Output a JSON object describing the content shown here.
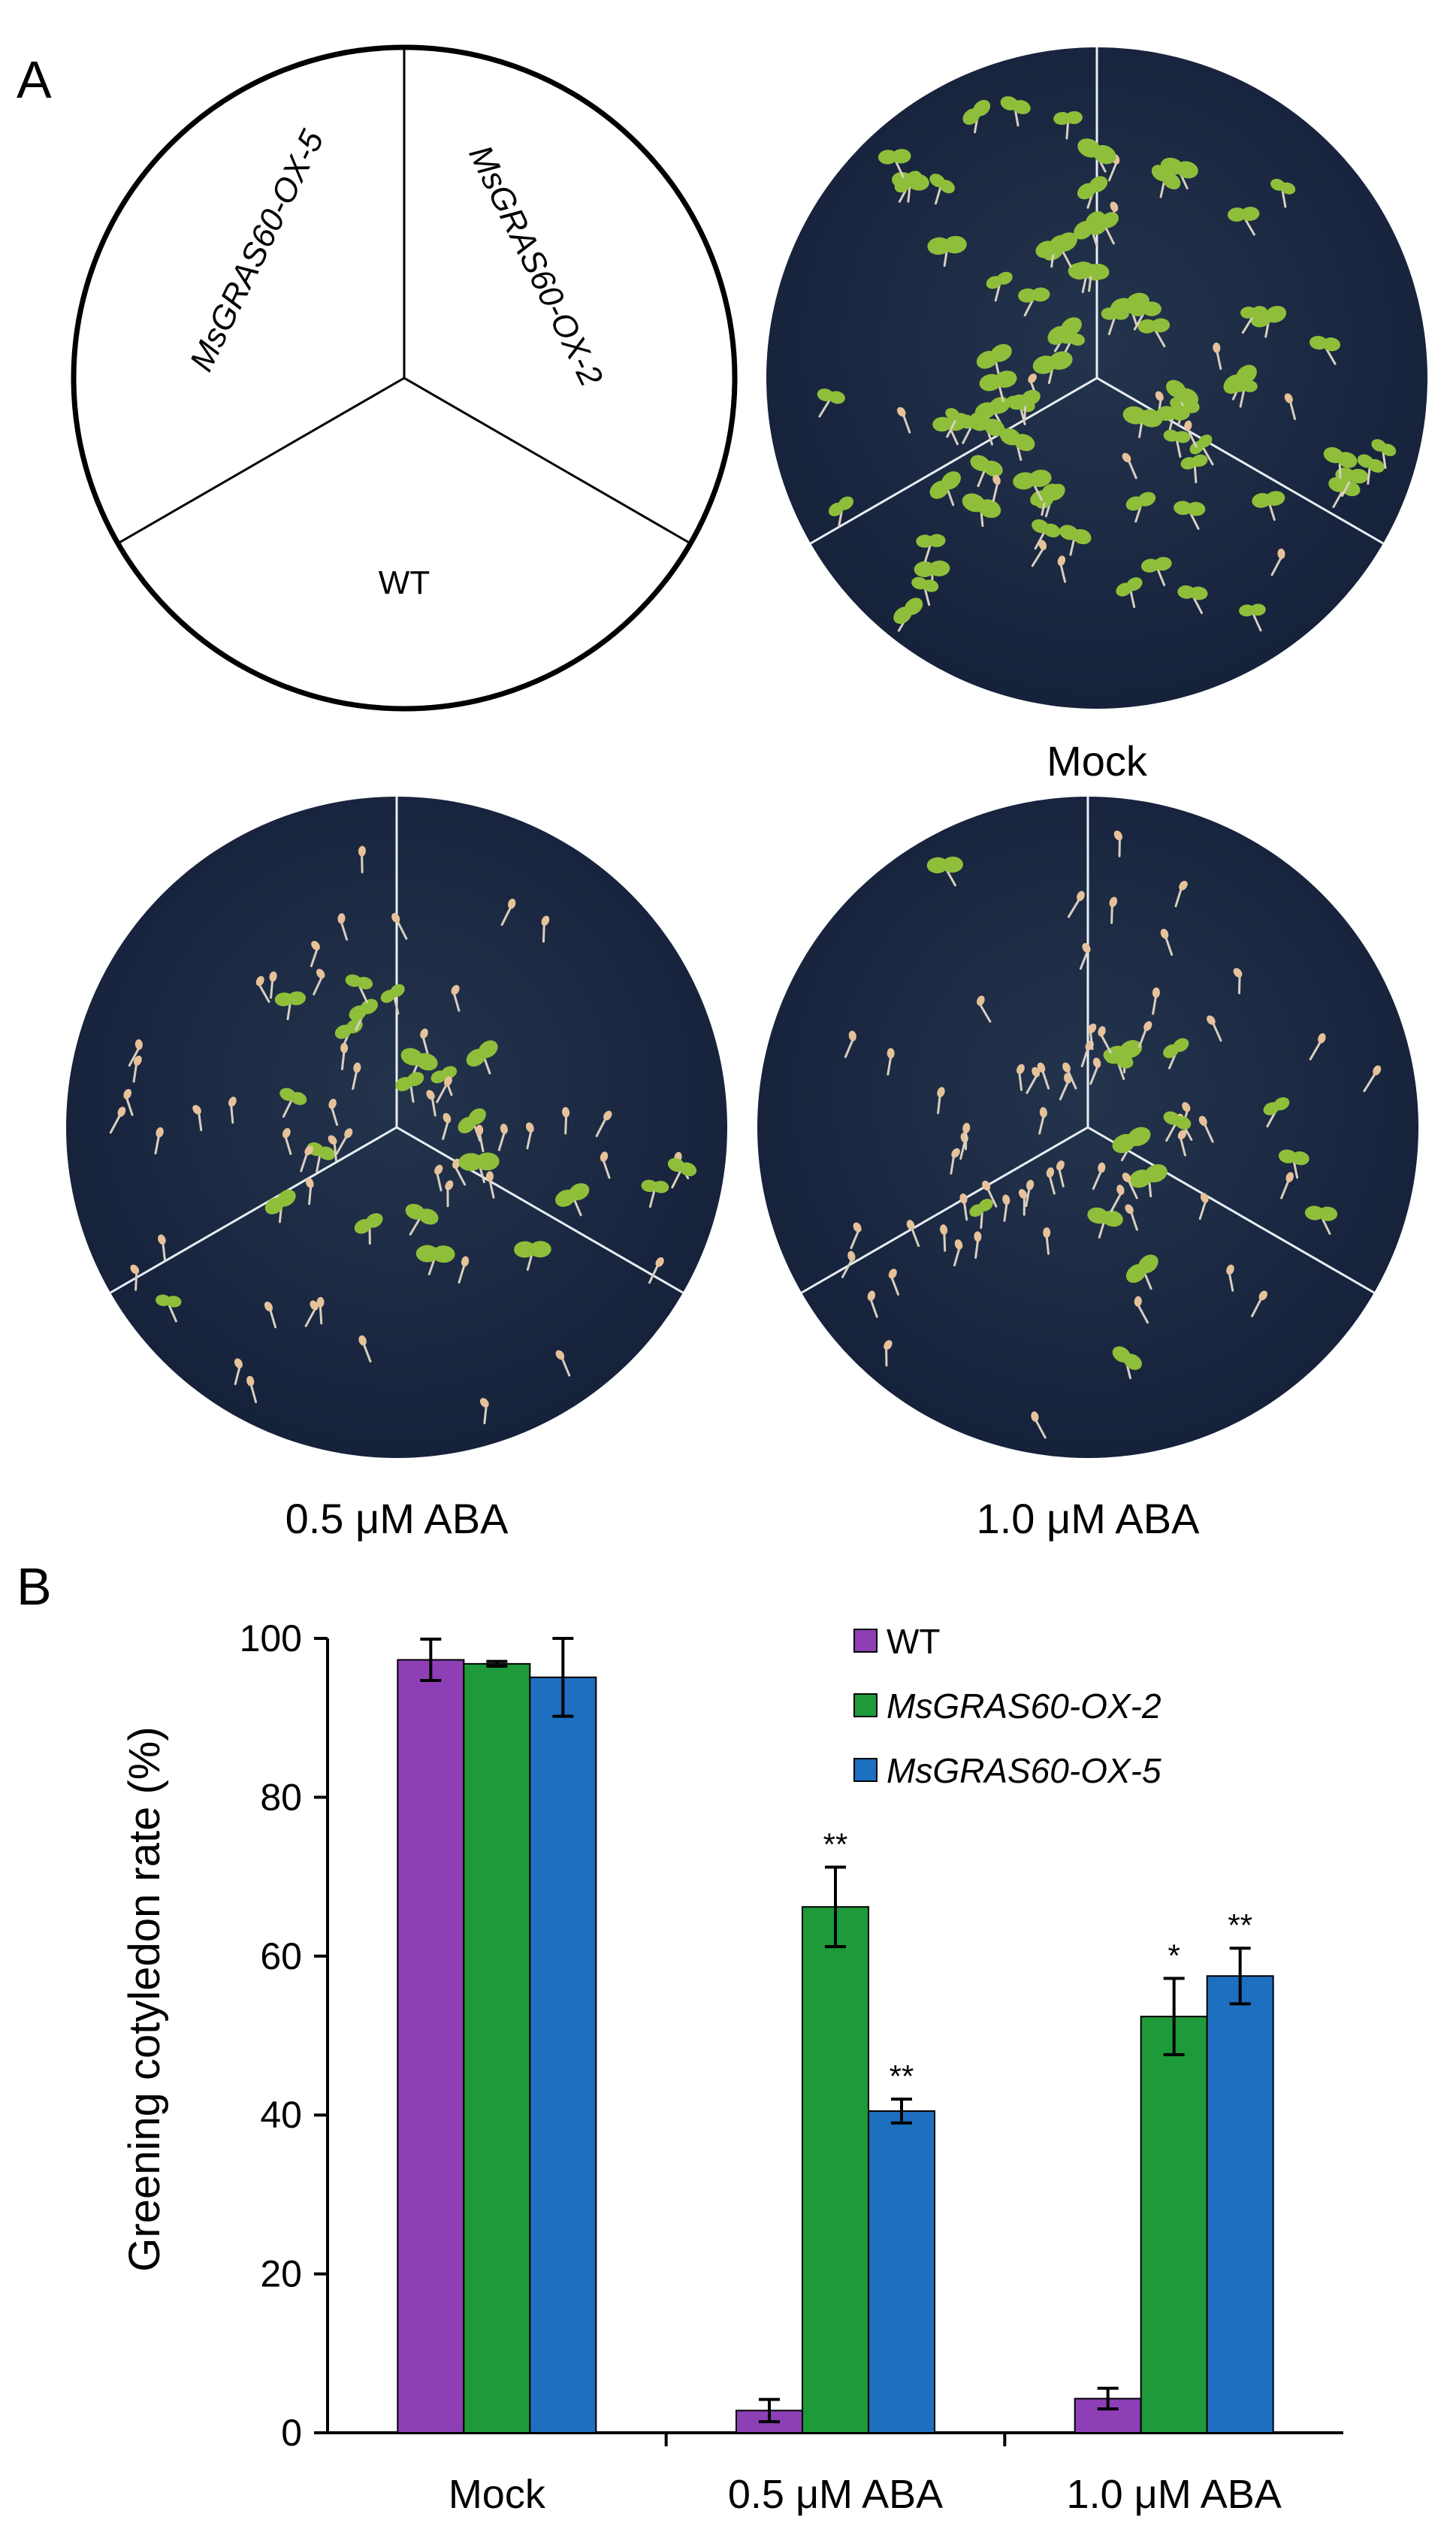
{
  "panel_a": {
    "letter": "A",
    "schematic": {
      "sector_top_left": "MsGRAS60-OX-5",
      "sector_top_right": "MsGRAS60-OX-2",
      "sector_bottom": "WT"
    },
    "plates": [
      {
        "caption": "Mock",
        "seedlings": {
          "ox5": "many-green",
          "ox2": "many-green",
          "wt": "many-green"
        }
      },
      {
        "caption": "0.5 μM ABA",
        "seedlings": {
          "ox5": "some-green",
          "ox2": "some-green",
          "wt": "few-green"
        }
      },
      {
        "caption": "1.0 μM ABA",
        "seedlings": {
          "ox5": "some-green",
          "ox2": "some-green",
          "wt": "few-green"
        }
      }
    ],
    "colors": {
      "plate": "#1c2a3f",
      "seedling": "#8fbf3a",
      "divider": "#e8eef4"
    }
  },
  "panel_b": {
    "letter": "B"
  },
  "chart_data": {
    "type": "bar",
    "ylabel": "Greening cotyledon rate (%)",
    "xlabel": "",
    "ylim": [
      0,
      100
    ],
    "yticks": [
      "0",
      "20",
      "40",
      "60",
      "80",
      "100"
    ],
    "categories": [
      "Mock",
      "0.5 μM ABA",
      "1.0 μM ABA"
    ],
    "series": [
      {
        "name": "WT",
        "italic": false,
        "color": "#8e3fb5",
        "values": [
          97.3,
          2.8,
          4.3
        ],
        "errors": [
          2.6,
          1.4,
          1.3
        ],
        "sig": [
          "",
          "",
          ""
        ]
      },
      {
        "name": "MsGRAS60-OX-2",
        "italic": true,
        "color": "#1e9a3a",
        "values": [
          96.8,
          66.2,
          52.4
        ],
        "errors": [
          0.3,
          5.0,
          4.8
        ],
        "sig": [
          "",
          "**",
          "*"
        ]
      },
      {
        "name": "MsGRAS60-OX-5",
        "italic": true,
        "color": "#1d6fc0",
        "values": [
          95.1,
          40.5,
          57.5
        ],
        "errors": [
          4.9,
          1.5,
          3.5
        ],
        "sig": [
          "",
          "**",
          "**"
        ]
      }
    ],
    "legend_position": "top-right",
    "grid": false
  }
}
